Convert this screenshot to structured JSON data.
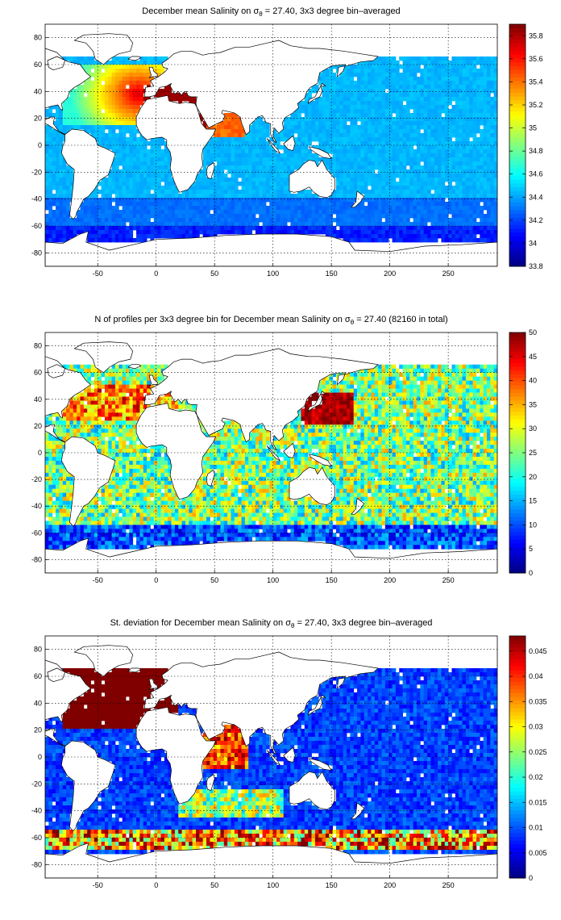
{
  "panels": [
    {
      "title_prefix": "December mean Salinity on ",
      "title_symbol": "σ",
      "title_subscript": "θ",
      "title_suffix": " = 27.40, 3x3 degree bin–averaged",
      "field": "salinity",
      "colorbar": {
        "min": 33.8,
        "max": 35.9,
        "ticks": [
          "33.8",
          "34",
          "34.2",
          "34.4",
          "34.6",
          "34.8",
          "35",
          "35.2",
          "35.4",
          "35.6",
          "35.8"
        ]
      }
    },
    {
      "title_prefix": "N of profiles per 3x3 degree bin for December mean Salinity on ",
      "title_symbol": "σ",
      "title_subscript": "θ",
      "title_suffix": " = 27.40 (82160 in total)",
      "field": "count",
      "colorbar": {
        "min": 0,
        "max": 50,
        "ticks": [
          "0",
          "5",
          "10",
          "15",
          "20",
          "25",
          "30",
          "35",
          "40",
          "45",
          "50"
        ]
      }
    },
    {
      "title_prefix": "St. deviation for December mean Salinity on ",
      "title_symbol": "σ",
      "title_subscript": "θ",
      "title_suffix": " = 27.40, 3x3 degree bin–averaged",
      "field": "stdev",
      "colorbar": {
        "min": 0,
        "max": 0.048,
        "ticks": [
          "0",
          "0.005",
          "0.01",
          "0.015",
          "0.02",
          "0.025",
          "0.03",
          "0.035",
          "0.04",
          "0.045"
        ]
      }
    }
  ],
  "axes": {
    "x_ticks": [
      "-50",
      "0",
      "50",
      "100",
      "150",
      "200",
      "250"
    ],
    "y_ticks": [
      "80",
      "60",
      "40",
      "20",
      "0",
      "-20",
      "-40",
      "-60",
      "-80"
    ],
    "xlim": [
      -95,
      292
    ],
    "ylim": [
      -90,
      90
    ]
  },
  "colormap": "jet",
  "chart_data": [
    {
      "type": "heatmap",
      "grid": "3x3 degree bins",
      "quantity": "December mean Salinity",
      "zlim": [
        33.8,
        35.9
      ]
    },
    {
      "type": "heatmap",
      "grid": "3x3 degree bins",
      "quantity": "N of profiles",
      "total": 82160,
      "zlim": [
        0,
        50
      ]
    },
    {
      "type": "heatmap",
      "grid": "3x3 degree bins",
      "quantity": "St. deviation",
      "zlim": [
        0,
        0.048
      ]
    }
  ]
}
